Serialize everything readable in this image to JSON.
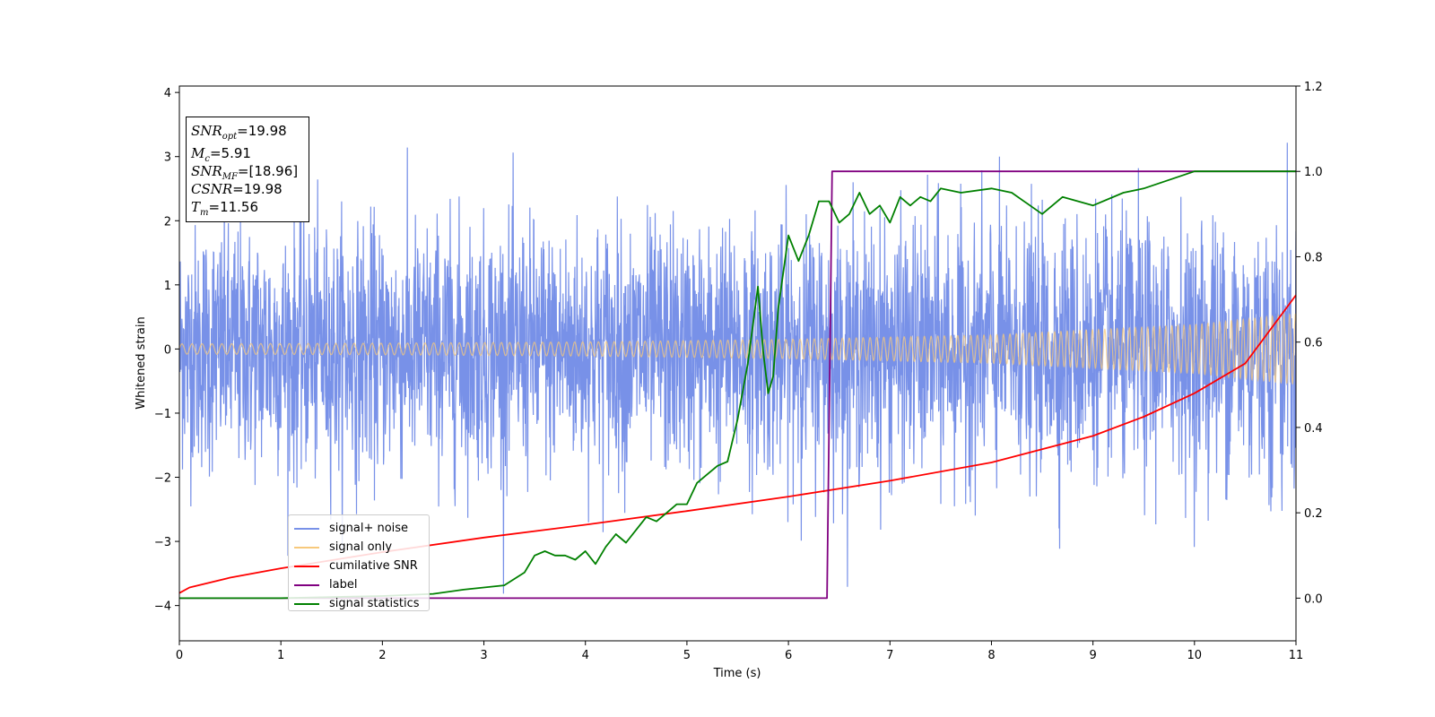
{
  "chart_data": {
    "type": "line",
    "title": "",
    "xlabel": "Time (s)",
    "ylabel": "Whitened strain",
    "xlim": [
      0,
      11
    ],
    "ylim_left": [
      -4.55,
      4.1
    ],
    "ylim_right": [
      -0.1,
      1.2
    ],
    "x_ticks": [
      "0",
      "1",
      "2",
      "3",
      "4",
      "5",
      "6",
      "7",
      "8",
      "9",
      "10",
      "11"
    ],
    "y_left_ticks": [
      "4",
      "3",
      "2",
      "1",
      "0",
      "−1",
      "−2",
      "−3",
      "−4"
    ],
    "y_right_ticks": [
      "1.2",
      "1.0",
      "0.8",
      "0.6",
      "0.4",
      "0.2",
      "0.0"
    ],
    "grid": false,
    "legend_placement": "lower-left",
    "annotations": {
      "snr_opt": "19.98",
      "mc": "5.91",
      "snr_mf": "[18.96]",
      "csnr": "19.98",
      "tm": "11.56"
    },
    "series": [
      {
        "name": "signal+ noise",
        "axis": "left",
        "color": "#7891e8",
        "description_values": "noisy strain, approx. amplitude range [-4.2, 3.7] around 0"
      },
      {
        "name": "signal only",
        "axis": "left",
        "color": "#f7c97c",
        "envelope": {
          "x": [
            0,
            2,
            4,
            6,
            8,
            10,
            11
          ],
          "amplitude": [
            0.08,
            0.09,
            0.11,
            0.15,
            0.22,
            0.38,
            0.55
          ]
        }
      },
      {
        "name": "cumilative SNR",
        "axis": "right",
        "color": "#ff0000",
        "x": [
          0,
          0.1,
          0.5,
          1,
          2,
          3,
          4,
          5,
          6,
          7,
          8,
          9,
          9.5,
          10,
          10.5,
          11
        ],
        "y": [
          0.012,
          0.025,
          0.048,
          0.07,
          0.108,
          0.142,
          0.172,
          0.204,
          0.238,
          0.275,
          0.318,
          0.38,
          0.425,
          0.48,
          0.55,
          0.71
        ]
      },
      {
        "name": "label",
        "axis": "right",
        "color": "#800080",
        "x": [
          0,
          6.38,
          6.43,
          11
        ],
        "y": [
          0.0,
          0.0,
          1.0,
          1.0
        ]
      },
      {
        "name": "signal statistics",
        "axis": "right",
        "color": "#008000",
        "x": [
          0,
          1,
          2,
          2.5,
          2.8,
          3.0,
          3.2,
          3.4,
          3.5,
          3.6,
          3.7,
          3.8,
          3.9,
          4.0,
          4.1,
          4.2,
          4.3,
          4.4,
          4.5,
          4.6,
          4.7,
          4.8,
          4.9,
          5.0,
          5.1,
          5.2,
          5.3,
          5.4,
          5.5,
          5.6,
          5.7,
          5.75,
          5.8,
          5.85,
          5.9,
          6.0,
          6.1,
          6.2,
          6.3,
          6.4,
          6.5,
          6.6,
          6.7,
          6.8,
          6.9,
          7.0,
          7.1,
          7.2,
          7.3,
          7.4,
          7.5,
          7.7,
          8.0,
          8.2,
          8.5,
          8.7,
          9.0,
          9.3,
          9.5,
          10.0,
          10.5,
          11.0
        ],
        "y": [
          0.0,
          0.0,
          0.005,
          0.01,
          0.02,
          0.025,
          0.03,
          0.06,
          0.1,
          0.11,
          0.1,
          0.1,
          0.09,
          0.11,
          0.08,
          0.12,
          0.15,
          0.13,
          0.16,
          0.19,
          0.18,
          0.2,
          0.22,
          0.22,
          0.27,
          0.29,
          0.31,
          0.32,
          0.42,
          0.55,
          0.73,
          0.58,
          0.48,
          0.52,
          0.68,
          0.85,
          0.79,
          0.85,
          0.93,
          0.93,
          0.88,
          0.9,
          0.95,
          0.9,
          0.92,
          0.88,
          0.94,
          0.92,
          0.94,
          0.93,
          0.96,
          0.95,
          0.96,
          0.95,
          0.9,
          0.94,
          0.92,
          0.95,
          0.96,
          1.0,
          1.0,
          1.0
        ]
      }
    ]
  }
}
